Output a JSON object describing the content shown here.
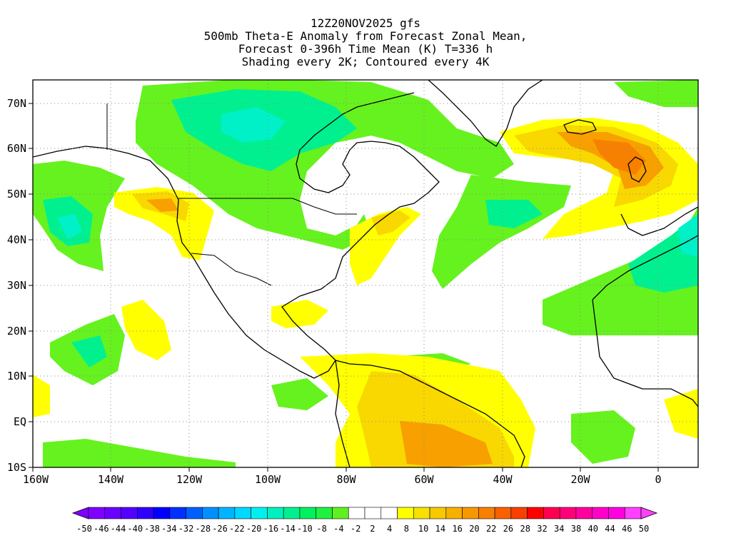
{
  "header": {
    "line1": "12Z20NOV2025 gfs",
    "line2": "500mb Theta-E Anomaly from Forecast Zonal Mean,",
    "line3": "Forecast 0-396h Time Mean (K) T=336 h",
    "line4": "Shading every 2K; Contoured every 4K"
  },
  "map": {
    "lon_range": [
      -160,
      10
    ],
    "lat_range": [
      -10,
      75
    ],
    "x_ticks": [
      "160W",
      "140W",
      "120W",
      "100W",
      "80W",
      "60W",
      "40W",
      "20W",
      "0"
    ],
    "y_ticks": [
      "70N",
      "60N",
      "50N",
      "40N",
      "30N",
      "20N",
      "10N",
      "EQ",
      "10S"
    ]
  },
  "colorbar": {
    "labels": [
      "-50",
      "-46",
      "-44",
      "-40",
      "-38",
      "-34",
      "-32",
      "-28",
      "-26",
      "-22",
      "-20",
      "-16",
      "-14",
      "-10",
      "-8",
      "-4",
      "-2",
      "2",
      "4",
      "8",
      "10",
      "14",
      "16",
      "20",
      "22",
      "26",
      "28",
      "32",
      "34",
      "38",
      "40",
      "44",
      "46",
      "50"
    ],
    "colors": [
      "#8000ff",
      "#6a00ff",
      "#5500ff",
      "#3000ff",
      "#0000ff",
      "#0030ff",
      "#0060ff",
      "#0090ff",
      "#00b4ff",
      "#00d8ff",
      "#00f0f0",
      "#00f0c0",
      "#00f090",
      "#00f060",
      "#20f040",
      "#60f020",
      "#ffffff",
      "#ffffff",
      "#ffffff",
      "#ffff00",
      "#f8e000",
      "#f8c800",
      "#f8b000",
      "#f89800",
      "#f88000",
      "#f86000",
      "#f84000",
      "#ff0000",
      "#ff0050",
      "#ff0078",
      "#ff00a0",
      "#ff00c8",
      "#ff00e0",
      "#ff40ff"
    ]
  },
  "colors": {
    "green": "#66f21e",
    "green_light": "#8cf24a",
    "teal": "#00f090",
    "cyan": "#00f0c8",
    "yellow": "#ffff00",
    "gold": "#f8d800",
    "orange": "#f8a000",
    "deep_orange": "#f88000"
  }
}
